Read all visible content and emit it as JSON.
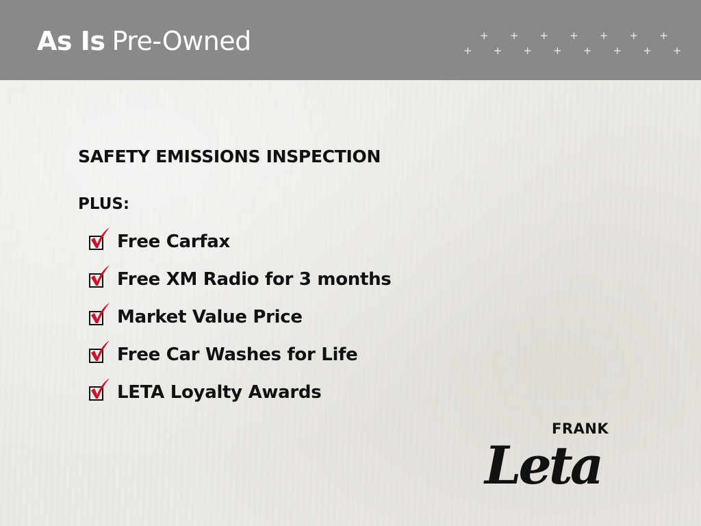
{
  "header": {
    "title_bold": "As Is",
    "title_rest": "Pre-Owned"
  },
  "content": {
    "heading": "SAFETY EMISSIONS INSPECTION",
    "plus_label": "PLUS:",
    "items": [
      {
        "label": "Free Carfax",
        "checked": true
      },
      {
        "label": "Free XM Radio for 3 months",
        "checked": true
      },
      {
        "label": "Market Value Price",
        "checked": true
      },
      {
        "label": "Free Car Washes for Life",
        "checked": true
      },
      {
        "label": "LETA Loyalty Awards",
        "checked": true
      }
    ]
  },
  "logo": {
    "top": "FRANK",
    "script": "Leta"
  },
  "colors": {
    "header": "#898989",
    "check": "#d0102a",
    "text": "#111111"
  }
}
